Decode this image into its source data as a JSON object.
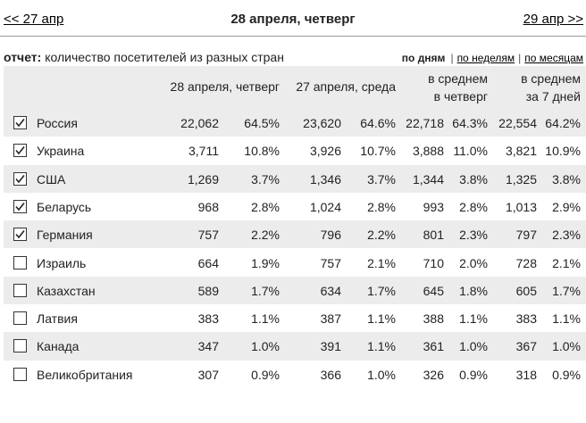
{
  "nav": {
    "prev": "<< 27 апр",
    "title": "28 апреля, четверг",
    "next": "29 апр >>"
  },
  "report": {
    "label": "отчет:",
    "text": "количество посетителей из разных стран",
    "modes": [
      "по дням",
      "по неделям",
      "по месяцам"
    ],
    "active_mode": 0,
    "separator": "|"
  },
  "table": {
    "columns": [
      [
        "28 апреля, четверг"
      ],
      [
        "27 апреля, среда"
      ],
      [
        "в среднем",
        "в четверг"
      ],
      [
        "в среднем",
        "за 7 дней"
      ]
    ],
    "rows": [
      {
        "checked": true,
        "country": "Россия",
        "cells": [
          "22,062",
          "64.5%",
          "23,620",
          "64.6%",
          "22,718",
          "64.3%",
          "22,554",
          "64.2%"
        ]
      },
      {
        "checked": true,
        "country": "Украина",
        "cells": [
          "3,711",
          "10.8%",
          "3,926",
          "10.7%",
          "3,888",
          "11.0%",
          "3,821",
          "10.9%"
        ]
      },
      {
        "checked": true,
        "country": "США",
        "cells": [
          "1,269",
          "3.7%",
          "1,346",
          "3.7%",
          "1,344",
          "3.8%",
          "1,325",
          "3.8%"
        ]
      },
      {
        "checked": true,
        "country": "Беларусь",
        "cells": [
          "968",
          "2.8%",
          "1,024",
          "2.8%",
          "993",
          "2.8%",
          "1,013",
          "2.9%"
        ]
      },
      {
        "checked": true,
        "country": "Германия",
        "cells": [
          "757",
          "2.2%",
          "796",
          "2.2%",
          "801",
          "2.3%",
          "797",
          "2.3%"
        ]
      },
      {
        "checked": false,
        "country": "Израиль",
        "cells": [
          "664",
          "1.9%",
          "757",
          "2.1%",
          "710",
          "2.0%",
          "728",
          "2.1%"
        ]
      },
      {
        "checked": false,
        "country": "Казахстан",
        "cells": [
          "589",
          "1.7%",
          "634",
          "1.7%",
          "645",
          "1.8%",
          "605",
          "1.7%"
        ]
      },
      {
        "checked": false,
        "country": "Латвия",
        "cells": [
          "383",
          "1.1%",
          "387",
          "1.1%",
          "388",
          "1.1%",
          "383",
          "1.1%"
        ]
      },
      {
        "checked": false,
        "country": "Канада",
        "cells": [
          "347",
          "1.0%",
          "391",
          "1.1%",
          "361",
          "1.0%",
          "367",
          "1.0%"
        ]
      },
      {
        "checked": false,
        "country": "Великобритания",
        "cells": [
          "307",
          "0.9%",
          "366",
          "1.0%",
          "326",
          "0.9%",
          "318",
          "0.9%"
        ]
      }
    ]
  }
}
